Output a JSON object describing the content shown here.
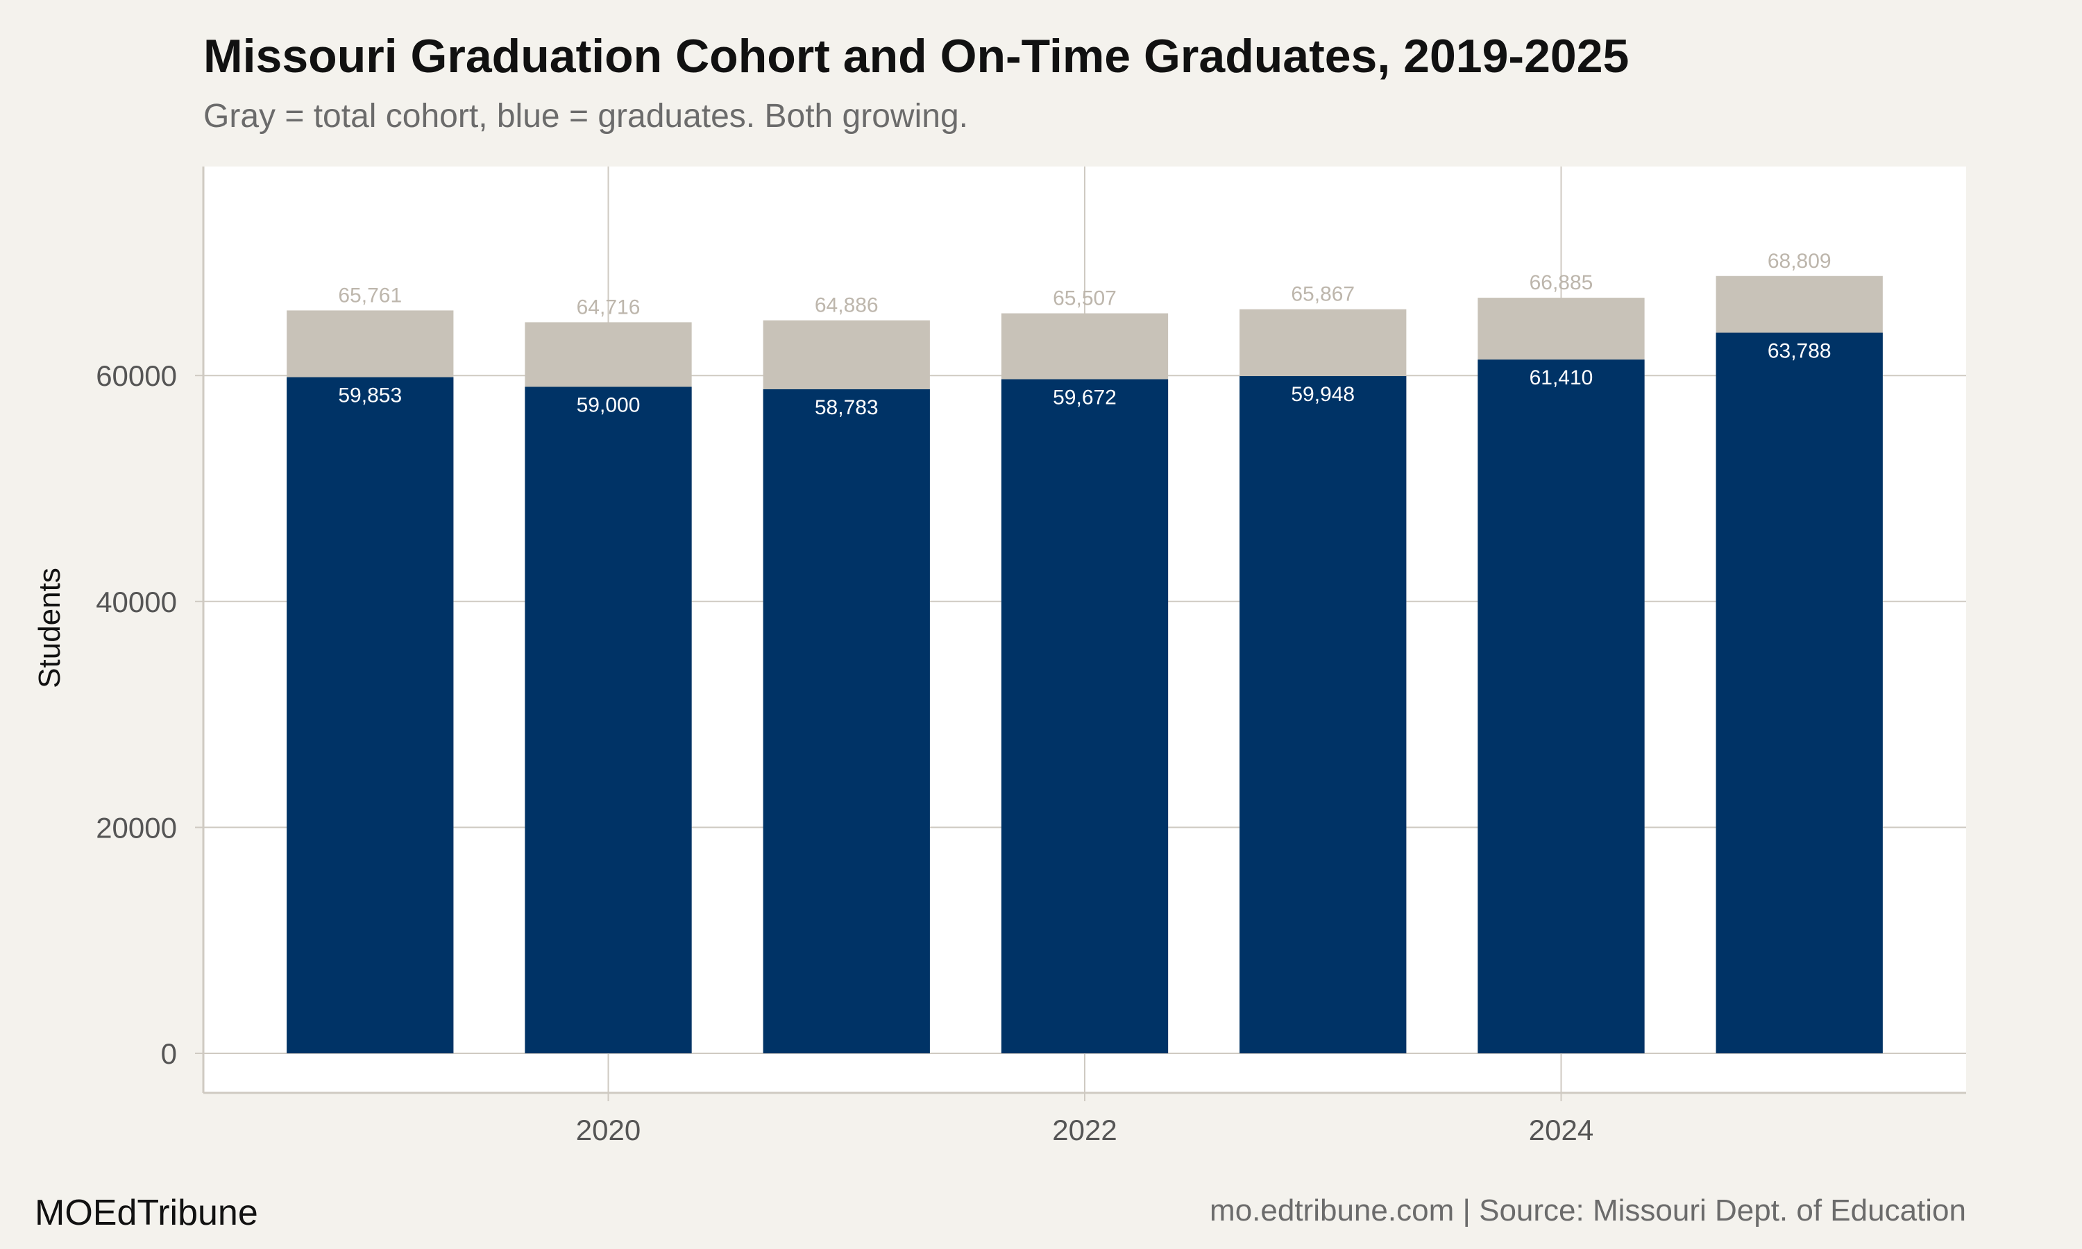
{
  "chart_data": {
    "type": "bar",
    "stacked": "overlay",
    "title": "Missouri Graduation Cohort and On-Time Graduates, 2019-2025",
    "subtitle": "Gray = total cohort, blue = graduates. Both growing.",
    "xlabel": "",
    "ylabel": "Students",
    "x": [
      2019,
      2020,
      2021,
      2022,
      2023,
      2024,
      2025
    ],
    "x_ticks": [
      "2020",
      "2022",
      "2024"
    ],
    "y_ticks": [
      "0",
      "20000",
      "40000",
      "60000"
    ],
    "ylim": [
      -3500,
      78500
    ],
    "grid": true,
    "series": [
      {
        "name": "total cohort",
        "color": "#c8c2b8",
        "values": [
          65761,
          64716,
          64886,
          65507,
          65867,
          66885,
          68809
        ],
        "labels": [
          "65,761",
          "64,716",
          "64,886",
          "65,507",
          "65,867",
          "66,885",
          "68,809"
        ]
      },
      {
        "name": "graduates",
        "color": "#003366",
        "values": [
          59853,
          59000,
          58783,
          59672,
          59948,
          61410,
          63788
        ],
        "labels": [
          "59,853",
          "59,000",
          "58,783",
          "59,672",
          "59,948",
          "61,410",
          "63,788"
        ]
      }
    ]
  },
  "footer": {
    "brand": "MOEdTribune",
    "source": "mo.edtribune.com | Source: Missouri Dept. of Education"
  }
}
